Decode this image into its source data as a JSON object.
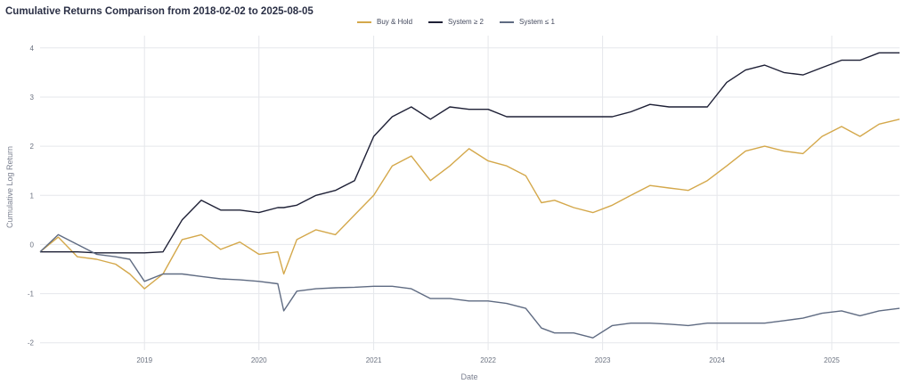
{
  "chart_data": {
    "type": "line",
    "title": "Cumulative Returns Comparison from 2018-02-02 to 2025-08-05",
    "xlabel": "Date",
    "ylabel": "Cumulative Log Return",
    "xlim": [
      "2018-02-02",
      "2025-08-05"
    ],
    "ylim": [
      -2.15,
      4.25
    ],
    "x_ticks": [
      "2019",
      "2020",
      "2021",
      "2022",
      "2023",
      "2024",
      "2025"
    ],
    "y_ticks": [
      -2,
      -1,
      0,
      1,
      2,
      3,
      4
    ],
    "grid": true,
    "legend_position": "top-center",
    "x": [
      "2018-02-02",
      "2018-04-01",
      "2018-06-01",
      "2018-08-01",
      "2018-10-01",
      "2018-11-15",
      "2019-01-01",
      "2019-03-01",
      "2019-05-01",
      "2019-07-01",
      "2019-09-01",
      "2019-11-01",
      "2020-01-01",
      "2020-03-01",
      "2020-03-20",
      "2020-05-01",
      "2020-07-01",
      "2020-09-01",
      "2020-11-01",
      "2021-01-01",
      "2021-03-01",
      "2021-05-01",
      "2021-07-01",
      "2021-09-01",
      "2021-11-01",
      "2022-01-01",
      "2022-03-01",
      "2022-05-01",
      "2022-06-20",
      "2022-08-01",
      "2022-10-01",
      "2022-12-01",
      "2023-02-01",
      "2023-04-01",
      "2023-06-01",
      "2023-08-01",
      "2023-10-01",
      "2023-12-01",
      "2024-02-01",
      "2024-04-01",
      "2024-06-01",
      "2024-08-01",
      "2024-10-01",
      "2024-12-01",
      "2025-02-01",
      "2025-04-01",
      "2025-06-01",
      "2025-08-05"
    ],
    "series": [
      {
        "name": "Buy & Hold",
        "color": "#d4a84b",
        "values": [
          -0.15,
          0.15,
          -0.25,
          -0.3,
          -0.4,
          -0.6,
          -0.9,
          -0.6,
          0.1,
          0.2,
          -0.1,
          0.05,
          -0.2,
          -0.15,
          -0.6,
          0.1,
          0.3,
          0.2,
          0.6,
          1.0,
          1.6,
          1.8,
          1.3,
          1.6,
          1.95,
          1.7,
          1.6,
          1.4,
          0.85,
          0.9,
          0.75,
          0.65,
          0.8,
          1.0,
          1.2,
          1.15,
          1.1,
          1.3,
          1.6,
          1.9,
          2.0,
          1.9,
          1.85,
          2.2,
          2.4,
          2.2,
          2.45,
          2.55
        ]
      },
      {
        "name": "System ≥ 2",
        "color": "#1e2036",
        "values": [
          -0.15,
          -0.15,
          -0.15,
          -0.17,
          -0.17,
          -0.17,
          -0.17,
          -0.15,
          0.5,
          0.9,
          0.7,
          0.7,
          0.65,
          0.75,
          0.75,
          0.8,
          1.0,
          1.1,
          1.3,
          2.2,
          2.6,
          2.8,
          2.55,
          2.8,
          2.75,
          2.75,
          2.6,
          2.6,
          2.6,
          2.6,
          2.6,
          2.6,
          2.6,
          2.7,
          2.85,
          2.8,
          2.8,
          2.8,
          3.3,
          3.55,
          3.65,
          3.5,
          3.45,
          3.6,
          3.75,
          3.75,
          3.9,
          3.9
        ]
      },
      {
        "name": "System ≤ 1",
        "color": "#5f6b82",
        "values": [
          -0.15,
          0.2,
          0.0,
          -0.2,
          -0.25,
          -0.3,
          -0.75,
          -0.6,
          -0.6,
          -0.65,
          -0.7,
          -0.72,
          -0.75,
          -0.8,
          -1.35,
          -0.95,
          -0.9,
          -0.88,
          -0.87,
          -0.85,
          -0.85,
          -0.9,
          -1.1,
          -1.1,
          -1.15,
          -1.15,
          -1.2,
          -1.3,
          -1.7,
          -1.8,
          -1.8,
          -1.9,
          -1.65,
          -1.6,
          -1.6,
          -1.62,
          -1.65,
          -1.6,
          -1.6,
          -1.6,
          -1.6,
          -1.55,
          -1.5,
          -1.4,
          -1.35,
          -1.45,
          -1.35,
          -1.3
        ]
      }
    ]
  }
}
